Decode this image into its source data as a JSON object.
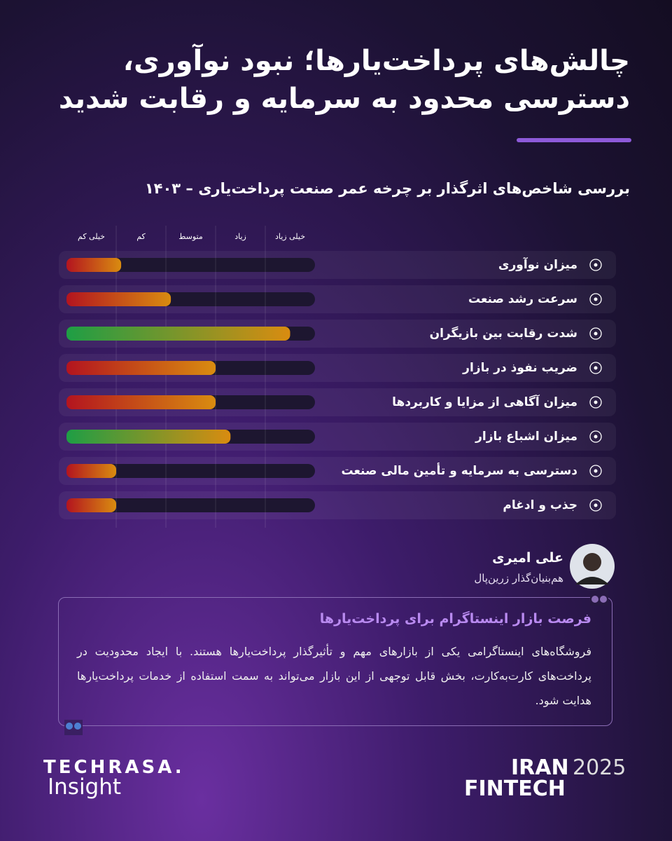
{
  "header": {
    "title_lines": [
      "چالش‌های پرداخت‌یارها؛ نبود نوآوری،",
      "دسترسی محدود به سرمایه و رقابت شدید"
    ]
  },
  "chart_data": {
    "type": "bar",
    "orientation": "horizontal",
    "title": "بررسی شاخص‌های اثرگذار بر چرخه عمر صنعت پرداخت‌یاری – ۱۴۰۳",
    "categories": [
      "میزان نوآوری",
      "سرعت رشد صنعت",
      "شدت رقابت بین بازیگران",
      "ضریب نفوذ در بازار",
      "میزان آگاهی از مزایا و کاربردها",
      "میزان اشباع بازار",
      "دسترسی به سرمایه و تأمین مالی صنعت",
      "جذب و ادغام"
    ],
    "values": [
      1.1,
      2.1,
      4.5,
      3,
      3,
      3.3,
      1,
      1
    ],
    "xlim": [
      0,
      5
    ],
    "xticks": [
      {
        "value": 0.5,
        "label": "خیلی کم"
      },
      {
        "value": 1.5,
        "label": "کم"
      },
      {
        "value": 2.5,
        "label": "متوسط"
      },
      {
        "value": 3.5,
        "label": "زیاد"
      },
      {
        "value": 4.5,
        "label": "خیلی زیاد"
      }
    ],
    "grid_lines": [
      1,
      2,
      3,
      4
    ],
    "start_colors": [
      "#b3141f",
      "#b3141f",
      "#1e9e45",
      "#b3141f",
      "#b3141f",
      "#1e9e45",
      "#b3141f",
      "#b3141f"
    ],
    "end_color": "#d98c10"
  },
  "author": {
    "name": "علی امیری",
    "role": "هم‌بنیان‌گذار زرین‌پال"
  },
  "quote": {
    "heading": "فرصت بازار اینستاگرام برای پرداخت‌یارها",
    "text": "فروشگاه‌های اینستاگرامی یکی از بازارهای مهم و تأثیرگذار پرداخت‌یارها هستند. با ایجاد محدودیت در پرداخت‌های کارت‌به‌کارت، بخش قابل توجهی از این بازار می‌تواند به سمت استفاده از خدمات پرداخت‌یارها هدایت شود."
  },
  "footer": {
    "brand": "TECHRASA.",
    "brand_sub": "Insight",
    "event_line1": "IRAN",
    "event_year": "2025",
    "event_line2": "FINTECH"
  }
}
